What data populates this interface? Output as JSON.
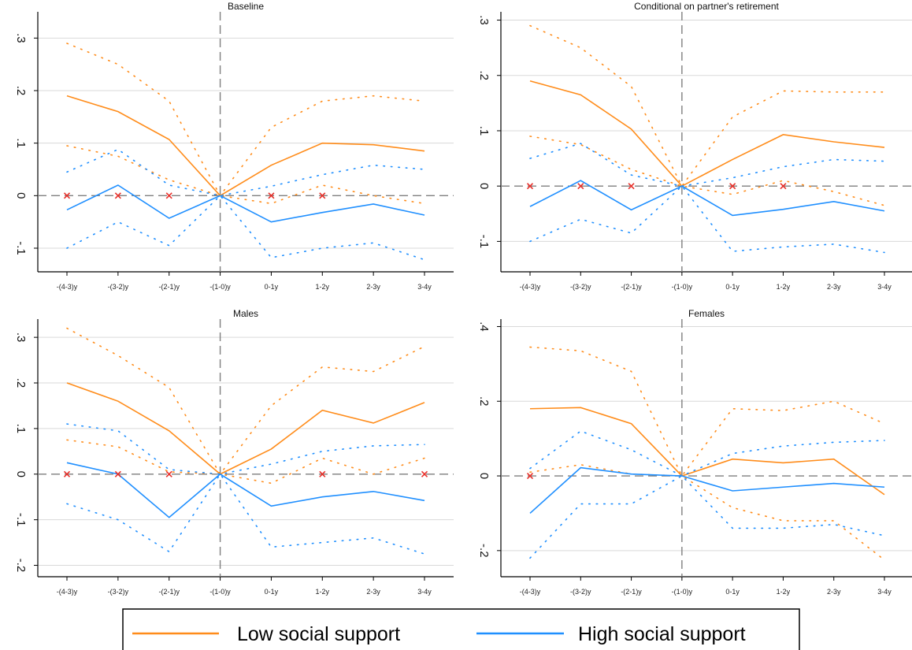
{
  "chart_data": [
    {
      "type": "line",
      "title": "Baseline",
      "categories": [
        "-(4-3)y",
        "-(3-2)y",
        "-(2-1)y",
        "-(1-0)y",
        "0-1y",
        "1-2y",
        "2-3y",
        "3-4y"
      ],
      "ylim": [
        -0.145,
        0.35
      ],
      "yticks": [
        -0.1,
        0,
        0.1,
        0.2,
        0.3
      ],
      "ytick_labels": [
        "-.1",
        "0",
        ".1",
        ".2",
        ".3"
      ],
      "vline_at": "-(1-0)y",
      "series": [
        {
          "name": "Low social support",
          "color": "#ff8c1a",
          "values": [
            0.19,
            0.16,
            0.107,
            0.0,
            0.058,
            0.1,
            0.097,
            0.085
          ],
          "ci_upper": [
            0.29,
            0.25,
            0.18,
            0.0,
            0.13,
            0.18,
            0.19,
            0.18
          ],
          "ci_lower": [
            0.095,
            0.075,
            0.03,
            0.0,
            -0.015,
            0.02,
            0.0,
            -0.015
          ]
        },
        {
          "name": "High social support",
          "color": "#1f8fff",
          "values": [
            -0.027,
            0.02,
            -0.043,
            0.0,
            -0.05,
            -0.032,
            -0.016,
            -0.037
          ],
          "ci_upper": [
            0.045,
            0.088,
            0.02,
            0.0,
            0.018,
            0.04,
            0.058,
            0.05
          ],
          "ci_lower": [
            -0.1,
            -0.05,
            -0.095,
            0.0,
            -0.118,
            -0.1,
            -0.09,
            -0.122
          ]
        }
      ],
      "markers_at_zero": [
        "-(4-3)y",
        "-(3-2)y",
        "-(2-1)y",
        "0-1y",
        "1-2y"
      ]
    },
    {
      "type": "line",
      "title": "Conditional on partner's retirement",
      "categories": [
        "-(4-3)y",
        "-(3-2)y",
        "-(2-1)y",
        "-(1-0)y",
        "0-1y",
        "1-2y",
        "2-3y",
        "3-4y"
      ],
      "ylim": [
        -0.155,
        0.315
      ],
      "yticks": [
        -0.1,
        0,
        0.1,
        0.2,
        0.3
      ],
      "ytick_labels": [
        "-.1",
        "0",
        ".1",
        ".2",
        ".3"
      ],
      "vline_at": "-(1-0)y",
      "series": [
        {
          "name": "Low social support",
          "color": "#ff8c1a",
          "values": [
            0.19,
            0.165,
            0.103,
            0.0,
            0.048,
            0.093,
            0.08,
            0.07
          ],
          "ci_upper": [
            0.29,
            0.25,
            0.18,
            0.0,
            0.125,
            0.172,
            0.17,
            0.17
          ],
          "ci_lower": [
            0.09,
            0.075,
            0.03,
            0.0,
            -0.015,
            0.01,
            -0.01,
            -0.035
          ]
        },
        {
          "name": "High social support",
          "color": "#1f8fff",
          "values": [
            -0.037,
            0.01,
            -0.043,
            0.0,
            -0.053,
            -0.042,
            -0.028,
            -0.045
          ],
          "ci_upper": [
            0.05,
            0.077,
            0.02,
            0.0,
            0.015,
            0.035,
            0.048,
            0.045
          ],
          "ci_lower": [
            -0.1,
            -0.06,
            -0.085,
            0.0,
            -0.118,
            -0.11,
            -0.105,
            -0.12
          ]
        }
      ],
      "markers_at_zero": [
        "-(4-3)y",
        "-(3-2)y",
        "-(2-1)y",
        "0-1y",
        "1-2y"
      ]
    },
    {
      "type": "line",
      "title": "Males",
      "categories": [
        "-(4-3)y",
        "-(3-2)y",
        "-(2-1)y",
        "-(1-0)y",
        "0-1y",
        "1-2y",
        "2-3y",
        "3-4y"
      ],
      "ylim": [
        -0.225,
        0.34
      ],
      "yticks": [
        -0.2,
        -0.1,
        0,
        0.1,
        0.2,
        0.3
      ],
      "ytick_labels": [
        "-.2",
        "-.1",
        "0",
        ".1",
        ".2",
        ".3"
      ],
      "vline_at": "-(1-0)y",
      "series": [
        {
          "name": "Low social support",
          "color": "#ff8c1a",
          "values": [
            0.2,
            0.16,
            0.095,
            0.0,
            0.055,
            0.14,
            0.112,
            0.157
          ],
          "ci_upper": [
            0.32,
            0.26,
            0.19,
            0.0,
            0.15,
            0.235,
            0.225,
            0.28
          ],
          "ci_lower": [
            0.075,
            0.06,
            0.005,
            0.0,
            -0.02,
            0.035,
            0.0,
            0.035
          ]
        },
        {
          "name": "High social support",
          "color": "#1f8fff",
          "values": [
            0.025,
            0.0,
            -0.095,
            0.0,
            -0.07,
            -0.05,
            -0.038,
            -0.058
          ],
          "ci_upper": [
            0.11,
            0.095,
            0.01,
            0.0,
            0.022,
            0.05,
            0.062,
            0.065
          ],
          "ci_lower": [
            -0.065,
            -0.1,
            -0.17,
            0.0,
            -0.16,
            -0.15,
            -0.14,
            -0.175
          ]
        }
      ],
      "markers_at_zero": [
        "-(4-3)y",
        "-(3-2)y",
        "-(2-1)y",
        "1-2y",
        "3-4y"
      ]
    },
    {
      "type": "line",
      "title": "Females",
      "categories": [
        "-(4-3)y",
        "-(3-2)y",
        "-(2-1)y",
        "-(1-0)y",
        "0-1y",
        "1-2y",
        "2-3y",
        "3-4y"
      ],
      "ylim": [
        -0.27,
        0.42
      ],
      "yticks": [
        -0.2,
        0,
        0.2,
        0.4
      ],
      "ytick_labels": [
        "-.2",
        "0",
        ".2",
        ".4"
      ],
      "vline_at": "-(1-0)y",
      "series": [
        {
          "name": "Low social support",
          "color": "#ff8c1a",
          "values": [
            0.18,
            0.183,
            0.14,
            0.0,
            0.045,
            0.035,
            0.045,
            -0.05
          ],
          "ci_upper": [
            0.345,
            0.335,
            0.28,
            0.0,
            0.18,
            0.175,
            0.2,
            0.14
          ],
          "ci_lower": [
            0.01,
            0.03,
            0.005,
            0.0,
            -0.085,
            -0.12,
            -0.12,
            -0.225
          ]
        },
        {
          "name": "High social support",
          "color": "#1f8fff",
          "values": [
            -0.1,
            0.022,
            0.005,
            0.0,
            -0.04,
            -0.03,
            -0.02,
            -0.03
          ],
          "ci_upper": [
            0.02,
            0.12,
            0.07,
            0.0,
            0.06,
            0.08,
            0.09,
            0.095
          ],
          "ci_lower": [
            -0.22,
            -0.075,
            -0.075,
            0.0,
            -0.14,
            -0.14,
            -0.13,
            -0.16
          ]
        }
      ],
      "markers_at_zero": [
        "-(4-3)y"
      ]
    }
  ],
  "legend": {
    "items": [
      {
        "label": "Low social support",
        "color": "#ff8c1a"
      },
      {
        "label": "High social support",
        "color": "#1f8fff"
      }
    ]
  }
}
